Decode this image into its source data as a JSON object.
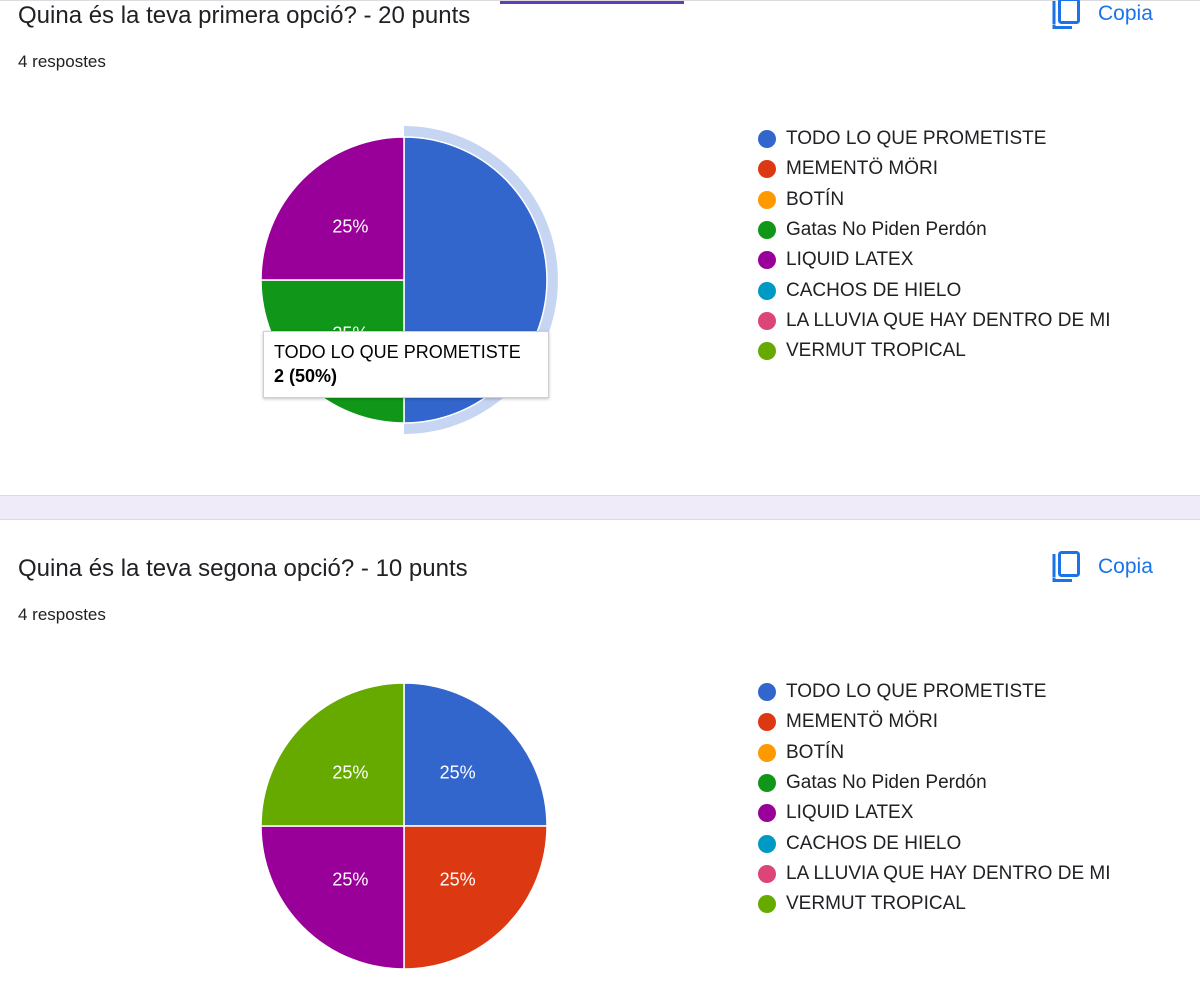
{
  "colors": {
    "accent": "#673ab7",
    "link": "#1a73e8",
    "highlight_ring": "#c6d5f2"
  },
  "options": [
    {
      "label": "TODO LO QUE PROMETISTE",
      "color": "#3366cc"
    },
    {
      "label": "MEMENTÖ MÖRI",
      "color": "#dc3912"
    },
    {
      "label": "BOTÍN",
      "color": "#ff9900"
    },
    {
      "label": "Gatas No Piden Perdón",
      "color": "#109618"
    },
    {
      "label": "LIQUID LATEX",
      "color": "#990099"
    },
    {
      "label": "CACHOS DE HIELO",
      "color": "#0099c6"
    },
    {
      "label": "LA LLUVIA QUE HAY DENTRO DE MI",
      "color": "#dd4477"
    },
    {
      "label": "VERMUT TROPICAL",
      "color": "#66aa00"
    }
  ],
  "questions": [
    {
      "title": "Quina és la teva primera opció? - 20 punts",
      "responses": "4 respostes",
      "copy_label": "Copia",
      "copy_icon": "copy-icon"
    },
    {
      "title": "Quina és la teva segona opció? - 10 punts",
      "responses": "4 respostes",
      "copy_label": "Copia",
      "copy_icon": "copy-icon"
    }
  ],
  "tooltip": {
    "name": "TODO LO QUE PROMETISTE",
    "value": "2 (50%)"
  },
  "chart_data": [
    {
      "type": "pie",
      "labels": [
        "TODO LO QUE PROMETISTE",
        "MEMENTÖ MÖRI",
        "BOTÍN",
        "Gatas No Piden Perdón",
        "LIQUID LATEX",
        "CACHOS DE HIELO",
        "LA LLUVIA QUE HAY DENTRO DE MI",
        "VERMUT TROPICAL"
      ],
      "values": [
        2,
        0,
        0,
        1,
        1,
        0,
        0,
        0
      ],
      "slice_labels": [
        "",
        "",
        "",
        "25%",
        "25%",
        "",
        "",
        ""
      ],
      "highlighted": "TODO LO QUE PROMETISTE",
      "legend": "right"
    },
    {
      "type": "pie",
      "labels": [
        "TODO LO QUE PROMETISTE",
        "MEMENTÖ MÖRI",
        "BOTÍN",
        "Gatas No Piden Perdón",
        "LIQUID LATEX",
        "CACHOS DE HIELO",
        "LA LLUVIA QUE HAY DENTRO DE MI",
        "VERMUT TROPICAL"
      ],
      "values": [
        1,
        1,
        0,
        0,
        1,
        0,
        0,
        1
      ],
      "slice_labels": [
        "25%",
        "25%",
        "",
        "",
        "25%",
        "",
        "",
        "25%"
      ],
      "legend": "right"
    }
  ]
}
